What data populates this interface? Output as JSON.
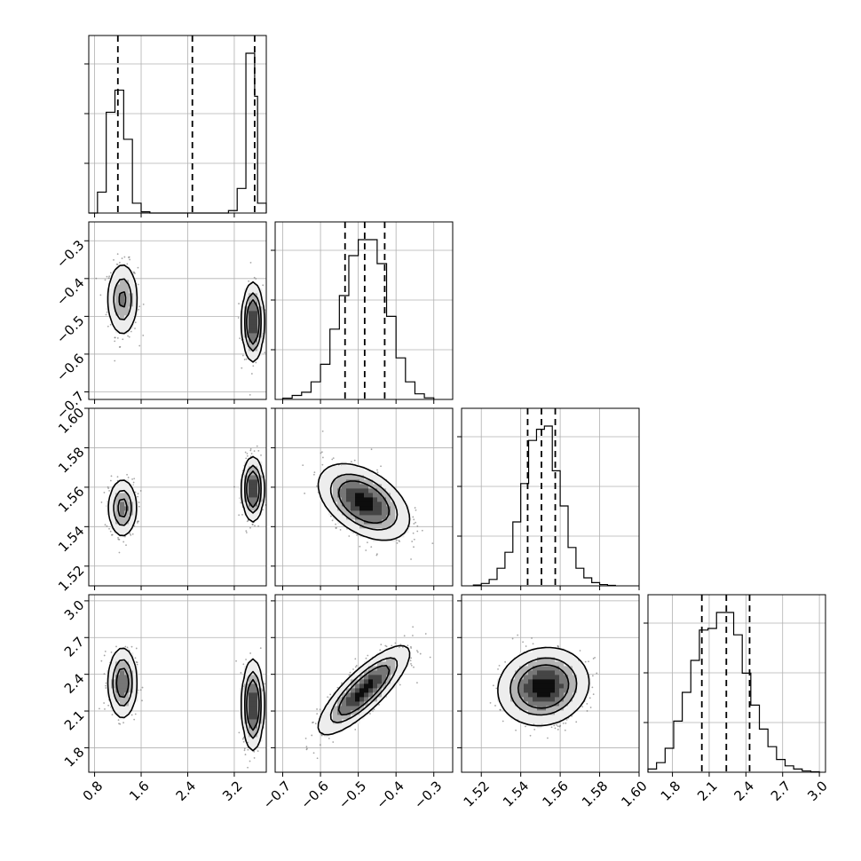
{
  "chart_data": {
    "type": "corner",
    "grid": true,
    "parameters": [
      {
        "range": [
          0.7,
          3.75
        ],
        "ticks": [
          "0.8",
          "1.6",
          "2.4",
          "3.2"
        ],
        "quantiles": [
          1.2,
          2.48,
          3.55
        ],
        "hist_edges": [
          0.7,
          0.85,
          1.0,
          1.15,
          1.3,
          1.45,
          1.6,
          1.75,
          1.9,
          2.05,
          2.2,
          2.35,
          2.5,
          2.65,
          2.8,
          2.95,
          3.1,
          3.25,
          3.4,
          3.55,
          3.6,
          3.75
        ],
        "hist_counts": [
          0,
          170,
          820,
          1000,
          600,
          80,
          10,
          0,
          0,
          0,
          0,
          0,
          0,
          0,
          0,
          0,
          20,
          200,
          1300,
          950,
          80
        ]
      },
      {
        "range": [
          -0.72,
          -0.25
        ],
        "ticks": [
          "-0.7",
          "-0.6",
          "-0.5",
          "-0.4",
          "-0.3"
        ],
        "quantiles": [
          -0.535,
          -0.483,
          -0.43
        ],
        "hist_edges": [
          -0.7,
          -0.675,
          -0.65,
          -0.625,
          -0.6,
          -0.575,
          -0.55,
          -0.525,
          -0.5,
          -0.475,
          -0.45,
          -0.425,
          -0.4,
          -0.375,
          -0.35,
          -0.325,
          -0.3
        ],
        "hist_counts": [
          8,
          25,
          45,
          110,
          220,
          440,
          650,
          900,
          1000,
          1000,
          850,
          520,
          260,
          110,
          35,
          10
        ]
      },
      {
        "range": [
          1.51,
          1.6
        ],
        "ticks": [
          "1.52",
          "1.54",
          "1.56",
          "1.58",
          "1.60"
        ],
        "quantiles": [
          1.5435,
          1.5505,
          1.5575
        ],
        "hist_edges": [
          1.516,
          1.52,
          1.524,
          1.528,
          1.532,
          1.536,
          1.54,
          1.544,
          1.548,
          1.552,
          1.556,
          1.56,
          1.564,
          1.568,
          1.572,
          1.576,
          1.58,
          1.584,
          1.588
        ],
        "hist_counts": [
          5,
          15,
          40,
          110,
          210,
          400,
          640,
          910,
          980,
          1000,
          720,
          500,
          240,
          110,
          50,
          20,
          8,
          3
        ]
      },
      {
        "range": [
          1.6,
          3.05
        ],
        "ticks": [
          "1.8",
          "2.1",
          "2.4",
          "2.7",
          "3.0"
        ],
        "quantiles": [
          2.04,
          2.24,
          2.43
        ],
        "hist_edges": [
          1.6,
          1.67,
          1.74,
          1.81,
          1.88,
          1.95,
          2.02,
          2.09,
          2.16,
          2.23,
          2.3,
          2.37,
          2.44,
          2.51,
          2.58,
          2.65,
          2.72,
          2.79,
          2.86,
          2.93,
          3.0
        ],
        "hist_counts": [
          20,
          60,
          150,
          320,
          500,
          700,
          890,
          900,
          1000,
          1000,
          860,
          620,
          420,
          270,
          160,
          80,
          40,
          20,
          8,
          3
        ]
      }
    ],
    "pairs": [
      {
        "x": 0,
        "y": 1,
        "modes": [
          {
            "mx": 1.28,
            "my": -0.455,
            "sx": 0.13,
            "sy": 0.048,
            "rho": 0,
            "weight": 0.45
          },
          {
            "mx": 3.52,
            "my": -0.515,
            "sx": 0.085,
            "sy": 0.048,
            "rho": 0,
            "weight": 0.55
          }
        ]
      },
      {
        "x": 0,
        "y": 2,
        "modes": [
          {
            "mx": 1.28,
            "my": 1.5495,
            "sx": 0.12,
            "sy": 0.0072,
            "rho": 0,
            "weight": 0.45
          },
          {
            "mx": 3.52,
            "my": 1.559,
            "sx": 0.085,
            "sy": 0.0075,
            "rho": 0,
            "weight": 0.55
          }
        ]
      },
      {
        "x": 0,
        "y": 3,
        "modes": [
          {
            "mx": 1.28,
            "my": 2.33,
            "sx": 0.12,
            "sy": 0.14,
            "rho": 0,
            "weight": 0.45
          },
          {
            "mx": 3.52,
            "my": 2.15,
            "sx": 0.085,
            "sy": 0.17,
            "rho": 0,
            "weight": 0.55
          }
        ]
      },
      {
        "x": 1,
        "y": 2,
        "modes": [
          {
            "mx": -0.485,
            "my": 1.5525,
            "sx": 0.055,
            "sy": 0.0088,
            "rho": -0.45,
            "weight": 1
          }
        ]
      },
      {
        "x": 1,
        "y": 3,
        "modes": [
          {
            "mx": -0.485,
            "my": 2.27,
            "sx": 0.055,
            "sy": 0.165,
            "rho": 0.82,
            "weight": 1
          }
        ]
      },
      {
        "x": 2,
        "y": 3,
        "modes": [
          {
            "mx": 1.5515,
            "my": 2.3,
            "sx": 0.0105,
            "sy": 0.145,
            "rho": 0.1,
            "weight": 1
          }
        ]
      }
    ]
  }
}
